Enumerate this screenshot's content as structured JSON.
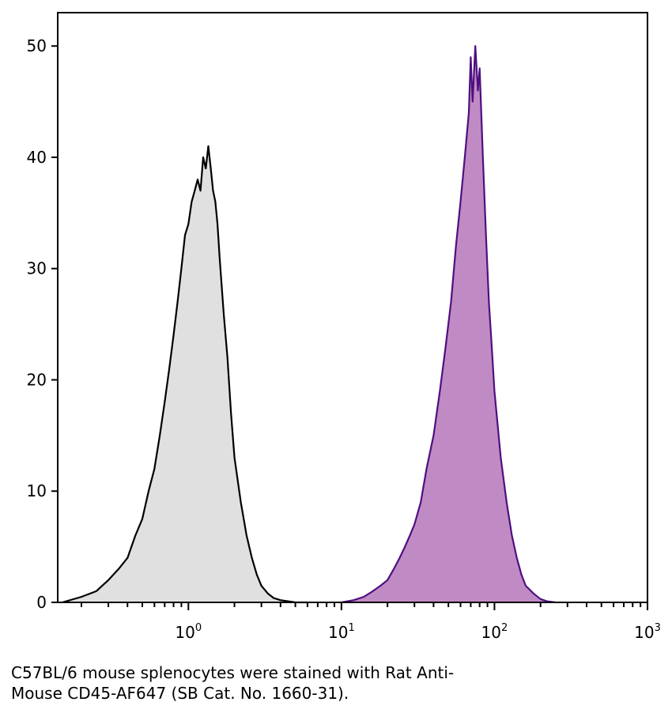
{
  "chart_data": {
    "type": "area",
    "title": "",
    "xlabel": "",
    "ylabel": "",
    "x_scale": "log",
    "xlim": [
      0.14,
      1000
    ],
    "ylim": [
      0,
      53
    ],
    "x_ticks": [
      {
        "value": 1,
        "base": "10",
        "exp": "0"
      },
      {
        "value": 10,
        "base": "10",
        "exp": "1"
      },
      {
        "value": 100,
        "base": "10",
        "exp": "2"
      },
      {
        "value": 1000,
        "base": "10",
        "exp": "3"
      }
    ],
    "y_ticks": [
      "0",
      "10",
      "20",
      "30",
      "40",
      "50"
    ],
    "grid": false,
    "legend": "none",
    "series": [
      {
        "fill": "#e0e0e0",
        "stroke": "#000000",
        "x": [
          0.15,
          0.2,
          0.25,
          0.3,
          0.35,
          0.4,
          0.45,
          0.5,
          0.55,
          0.6,
          0.65,
          0.7,
          0.75,
          0.8,
          0.85,
          0.9,
          0.95,
          1.0,
          1.05,
          1.1,
          1.15,
          1.2,
          1.25,
          1.3,
          1.35,
          1.4,
          1.45,
          1.5,
          1.55,
          1.6,
          1.7,
          1.8,
          1.9,
          2.0,
          2.2,
          2.4,
          2.6,
          2.8,
          3.0,
          3.3,
          3.6,
          4.0,
          5.0,
          6.0
        ],
        "y": [
          0,
          0.5,
          1,
          2,
          3,
          4,
          6,
          7.5,
          10,
          12,
          15,
          18,
          21,
          24,
          27,
          30,
          33,
          34,
          36,
          37,
          38,
          37,
          40,
          39,
          41,
          39,
          37,
          36,
          34,
          31,
          26,
          22,
          17,
          13,
          9,
          6,
          4,
          2.5,
          1.5,
          0.8,
          0.4,
          0.2,
          0,
          0
        ]
      },
      {
        "fill": "#c08bc4",
        "stroke": "#4e1080",
        "x": [
          10,
          12,
          14,
          16,
          18,
          20,
          22,
          24,
          26,
          28,
          30,
          33,
          36,
          40,
          44,
          48,
          52,
          56,
          60,
          64,
          68,
          70,
          72,
          75,
          78,
          80,
          84,
          88,
          92,
          96,
          100,
          110,
          120,
          130,
          140,
          150,
          160,
          180,
          200,
          220,
          250
        ],
        "y": [
          0,
          0.2,
          0.5,
          1,
          1.5,
          2,
          3,
          4,
          5,
          6,
          7,
          9,
          12,
          15,
          19,
          23,
          27,
          32,
          36,
          40,
          44,
          49,
          45,
          50,
          46,
          48,
          40,
          33,
          27,
          23,
          19,
          13,
          9,
          6,
          4,
          2.5,
          1.5,
          0.8,
          0.3,
          0.1,
          0
        ]
      }
    ]
  },
  "caption": {
    "line1": "C57BL/6 mouse splenocytes were stained with Rat Anti-",
    "line2": "Mouse CD45-AF647 (SB Cat. No. 1660-31)."
  }
}
